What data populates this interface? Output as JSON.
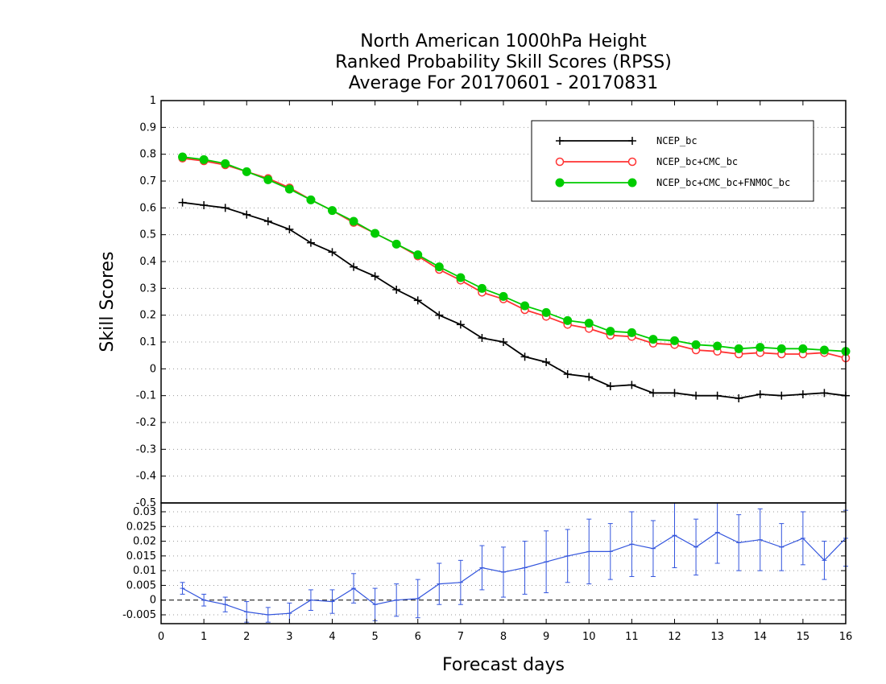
{
  "chart_data": [
    {
      "type": "line",
      "title": [
        "North American 1000hPa Height",
        "Ranked Probability Skill Scores (RPSS)",
        "Average For 20170601 - 20170831"
      ],
      "xlabel": "Forecast days",
      "ylabel": "Skill Scores",
      "xlim": [
        0,
        16
      ],
      "ylim": [
        -0.5,
        1
      ],
      "xticks": [
        "0",
        "1",
        "2",
        "3",
        "4",
        "5",
        "6",
        "7",
        "8",
        "9",
        "10",
        "11",
        "12",
        "13",
        "14",
        "15",
        "16"
      ],
      "yticks": [
        "-0.5",
        "-0.4",
        "-0.3",
        "-0.2",
        "-0.1",
        "0",
        "0.1",
        "0.2",
        "0.3",
        "0.4",
        "0.5",
        "0.6",
        "0.7",
        "0.8",
        "0.9",
        "1"
      ],
      "grid": "horizontal dotted",
      "legend_position": "top-right",
      "x": [
        0.5,
        1,
        1.5,
        2,
        2.5,
        3,
        3.5,
        4,
        4.5,
        5,
        5.5,
        6,
        6.5,
        7,
        7.5,
        8,
        8.5,
        9,
        9.5,
        10,
        10.5,
        11,
        11.5,
        12,
        12.5,
        13,
        13.5,
        14,
        14.5,
        15,
        15.5,
        16
      ],
      "series": [
        {
          "name": "NCEP_bc",
          "color": "#000000",
          "marker": "plus",
          "values": [
            0.62,
            0.61,
            0.6,
            0.575,
            0.55,
            0.52,
            0.47,
            0.435,
            0.38,
            0.345,
            0.295,
            0.255,
            0.2,
            0.165,
            0.115,
            0.1,
            0.045,
            0.025,
            -0.02,
            -0.03,
            -0.065,
            -0.06,
            -0.09,
            -0.09,
            -0.1,
            -0.1,
            -0.11,
            -0.095,
            -0.1,
            -0.095,
            -0.09,
            -0.1
          ]
        },
        {
          "name": "NCEP_bc+CMC_bc",
          "color": "#ff3333",
          "marker": "open-circle",
          "values": [
            0.785,
            0.775,
            0.76,
            0.735,
            0.71,
            0.675,
            0.63,
            0.59,
            0.545,
            0.505,
            0.465,
            0.42,
            0.37,
            0.33,
            0.285,
            0.26,
            0.22,
            0.195,
            0.165,
            0.15,
            0.125,
            0.12,
            0.095,
            0.09,
            0.07,
            0.065,
            0.055,
            0.06,
            0.055,
            0.055,
            0.06,
            0.04
          ]
        },
        {
          "name": "NCEP_bc+CMC_bc+FNMOC_bc",
          "color": "#00cc00",
          "marker": "filled-circle",
          "values": [
            0.79,
            0.78,
            0.765,
            0.735,
            0.705,
            0.67,
            0.63,
            0.59,
            0.55,
            0.505,
            0.465,
            0.425,
            0.38,
            0.34,
            0.3,
            0.27,
            0.235,
            0.21,
            0.18,
            0.17,
            0.14,
            0.135,
            0.11,
            0.105,
            0.09,
            0.085,
            0.075,
            0.08,
            0.075,
            0.075,
            0.07,
            0.065
          ]
        }
      ]
    },
    {
      "type": "line",
      "title": "",
      "xlabel": "Forecast days",
      "ylabel": "",
      "xlim": [
        0,
        16
      ],
      "ylim": [
        -0.008,
        0.033
      ],
      "yticks": [
        "-0.005",
        "0",
        "0.005",
        "0.01",
        "0.015",
        "0.02",
        "0.025",
        "0.03"
      ],
      "grid": "horizontal dotted",
      "zero_line": "dashed",
      "x": [
        0.5,
        1,
        1.5,
        2,
        2.5,
        3,
        3.5,
        4,
        4.5,
        5,
        5.5,
        6,
        6.5,
        7,
        7.5,
        8,
        8.5,
        9,
        9.5,
        10,
        10.5,
        11,
        11.5,
        12,
        12.5,
        13,
        13.5,
        14,
        14.5,
        15,
        15.5,
        16
      ],
      "series": [
        {
          "color": "#3355dd",
          "values": [
            0.004,
            0.0,
            -0.0015,
            -0.004,
            -0.005,
            -0.0045,
            0.0,
            -0.0005,
            0.004,
            -0.0015,
            0.0,
            0.0005,
            0.0055,
            0.006,
            0.011,
            0.0095,
            0.011,
            0.013,
            0.015,
            0.0165,
            0.0165,
            0.019,
            0.0175,
            0.022,
            0.018,
            0.023,
            0.0195,
            0.0205,
            0.018,
            0.021,
            0.0135,
            0.021
          ],
          "errors": [
            0.002,
            0.002,
            0.0025,
            0.0035,
            0.0025,
            0.0035,
            0.0035,
            0.004,
            0.005,
            0.0055,
            0.0055,
            0.0065,
            0.007,
            0.0075,
            0.0075,
            0.0085,
            0.009,
            0.0105,
            0.009,
            0.011,
            0.0095,
            0.011,
            0.0095,
            0.011,
            0.0095,
            0.0105,
            0.0095,
            0.0105,
            0.008,
            0.009,
            0.0065,
            0.0095
          ]
        }
      ]
    }
  ]
}
